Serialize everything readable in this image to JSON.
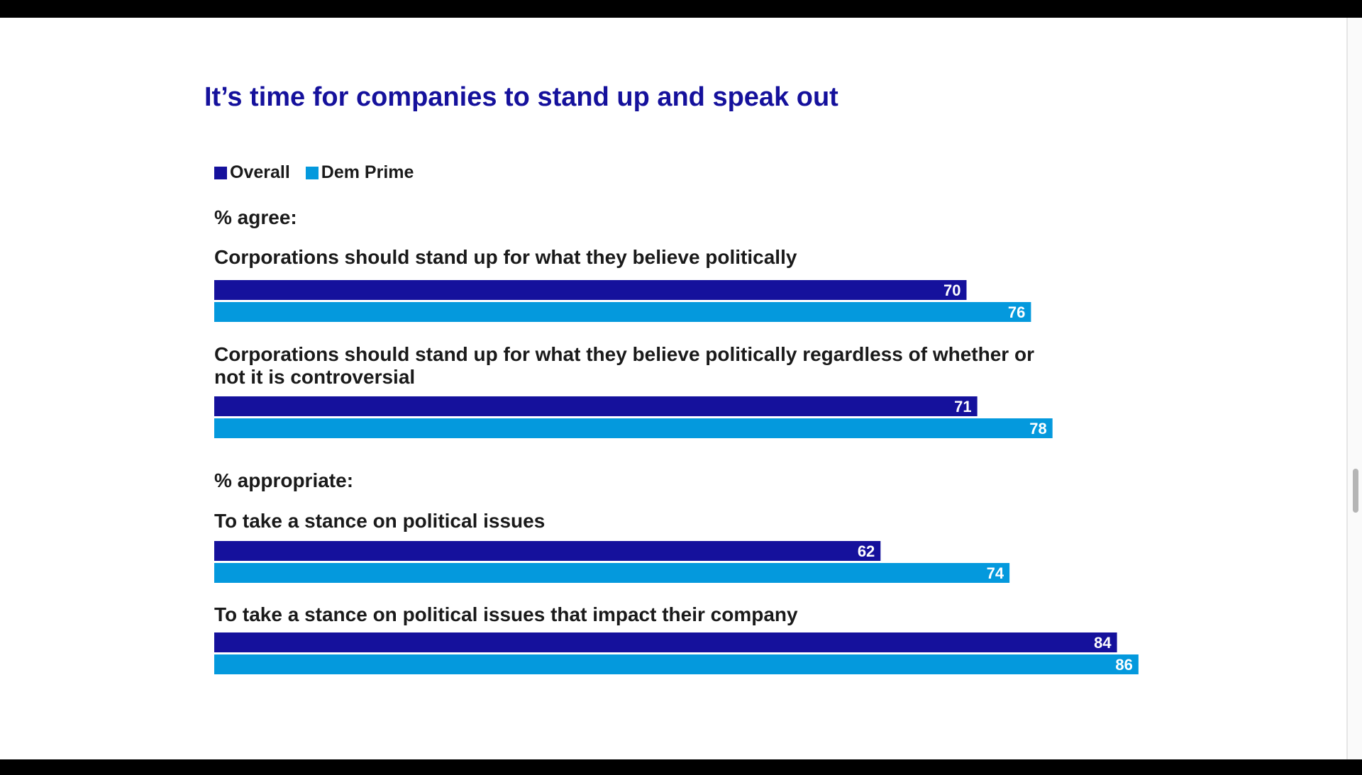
{
  "chart_data": {
    "type": "bar",
    "orientation": "horizontal",
    "title": "It’s time for companies to stand up and speak out",
    "legend_position": "top-left",
    "series": [
      {
        "name": "Overall",
        "color": "#15119c"
      },
      {
        "name": "Dem Prime",
        "color": "#0499dd"
      }
    ],
    "groups": [
      {
        "label": "% agree:",
        "items": [
          {
            "label": "Corporations should stand up for what they believe politically",
            "values": [
              70,
              76
            ]
          },
          {
            "label": "Corporations should stand up for what they believe politically regardless of whether or not it is controversial",
            "values": [
              71,
              78
            ]
          }
        ]
      },
      {
        "label": "% appropriate:",
        "items": [
          {
            "label": "To take a stance on political issues",
            "values": [
              62,
              74
            ]
          },
          {
            "label": "To take a stance on political issues that impact their company",
            "values": [
              84,
              86
            ]
          }
        ]
      }
    ],
    "xlim": [
      0,
      100
    ],
    "grid": false
  }
}
